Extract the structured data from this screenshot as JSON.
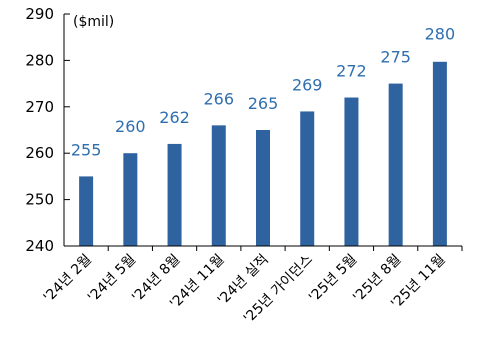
{
  "chart_data": {
    "type": "bar",
    "unit_label": "($mil)",
    "categories": [
      "'24년 2월",
      "'24년 5월",
      "'24년 8월",
      "'24년 11월",
      "'24년 실적",
      "'25년 가이던스",
      "'25년 5월",
      "'25년 8월",
      "'25년 11월"
    ],
    "values": [
      255,
      260,
      262,
      266,
      265,
      269,
      272,
      275,
      280
    ],
    "bar_values": [
      255,
      260,
      262,
      266,
      265,
      269,
      272,
      275,
      279.7
    ],
    "ylim": [
      240,
      290
    ],
    "yticks": [
      240,
      250,
      260,
      270,
      280,
      290
    ],
    "grid": false,
    "bar_color": "#2e63a0",
    "label_color": "#2f6fb0"
  }
}
